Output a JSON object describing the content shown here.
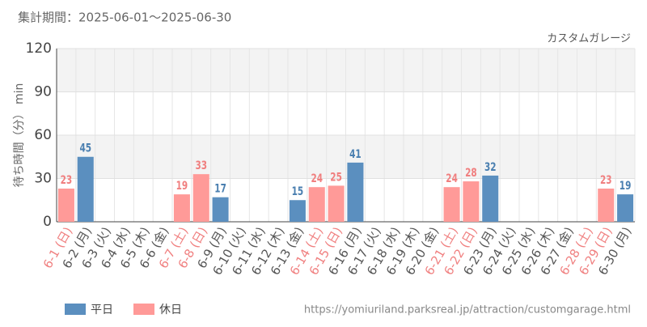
{
  "chart_data": {
    "type": "bar",
    "title": "集計期間：2025-06-01～2025-06-30",
    "subtitle": "カスタムガレージ",
    "y_label": "待ち時間（分） min",
    "source": "https://yomiuriland.parksreal.jp/attraction/customgarage.html",
    "categories": [
      "6-1 (日)",
      "6-2 (月)",
      "6-3 (火)",
      "6-4 (水)",
      "6-5 (木)",
      "6-6 (金)",
      "6-7 (土)",
      "6-8 (日)",
      "6-9 (月)",
      "6-10 (火)",
      "6-11 (水)",
      "6-12 (木)",
      "6-13 (金)",
      "6-14 (土)",
      "6-15 (日)",
      "6-16 (月)",
      "6-17 (火)",
      "6-18 (水)",
      "6-19 (木)",
      "6-20 (金)",
      "6-21 (土)",
      "6-22 (日)",
      "6-23 (月)",
      "6-24 (火)",
      "6-25 (水)",
      "6-26 (木)",
      "6-27 (金)",
      "6-28 (土)",
      "6-29 (日)",
      "6-30 (月)"
    ],
    "category_colors": [
      "#f08080",
      "#555555",
      "#555555",
      "#555555",
      "#555555",
      "#555555",
      "#f08080",
      "#f08080",
      "#555555",
      "#555555",
      "#555555",
      "#555555",
      "#555555",
      "#f08080",
      "#f08080",
      "#555555",
      "#555555",
      "#555555",
      "#555555",
      "#555555",
      "#f08080",
      "#f08080",
      "#555555",
      "#555555",
      "#555555",
      "#555555",
      "#555555",
      "#f08080",
      "#f08080",
      "#555555"
    ],
    "series": [
      {
        "name": "平日",
        "color": "#5b8fbf",
        "label_color": "#4a7fb0",
        "values": [
          null,
          45,
          null,
          null,
          null,
          null,
          null,
          null,
          17,
          null,
          null,
          null,
          15,
          null,
          null,
          41,
          null,
          null,
          null,
          null,
          null,
          null,
          32,
          null,
          null,
          null,
          null,
          null,
          null,
          19
        ]
      },
      {
        "name": "休日",
        "color": "#ff9a98",
        "label_color": "#f07f7f",
        "values": [
          23,
          null,
          null,
          null,
          null,
          null,
          19,
          33,
          null,
          null,
          null,
          null,
          null,
          24,
          25,
          null,
          null,
          null,
          null,
          null,
          24,
          28,
          null,
          null,
          null,
          null,
          null,
          null,
          23,
          null
        ]
      }
    ],
    "ylim": [
      0,
      120
    ],
    "yticks": [
      0,
      30,
      60,
      90,
      120
    ],
    "grid": true
  }
}
